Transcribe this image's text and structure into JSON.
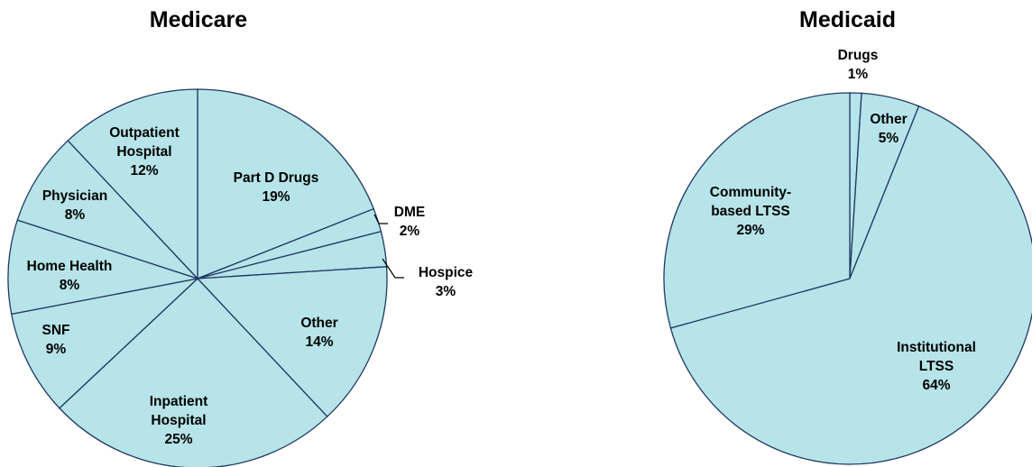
{
  "chart_data": [
    {
      "type": "pie",
      "title": "Medicare",
      "slices": [
        {
          "label": "Part D Drugs",
          "value": 19
        },
        {
          "label": "DME",
          "value": 2
        },
        {
          "label": "Hospice",
          "value": 3
        },
        {
          "label": "Other",
          "value": 14
        },
        {
          "label": "Inpatient Hospital",
          "value": 25
        },
        {
          "label": "SNF",
          "value": 9
        },
        {
          "label": "Home Health",
          "value": 8
        },
        {
          "label": "Physician",
          "value": 8
        },
        {
          "label": "Outpatient Hospital",
          "value": 12
        }
      ],
      "colors": {
        "fill": "#b6e4e8",
        "stroke": "#1f3864"
      }
    },
    {
      "type": "pie",
      "title": "Medicaid",
      "slices": [
        {
          "label": "Drugs",
          "value": 1
        },
        {
          "label": "Other",
          "value": 5
        },
        {
          "label": "Institutional LTSS",
          "value": 64
        },
        {
          "label": "Community-based LTSS",
          "value": 29
        }
      ],
      "colors": {
        "fill": "#b6e4e8",
        "stroke": "#1f3864"
      }
    }
  ]
}
